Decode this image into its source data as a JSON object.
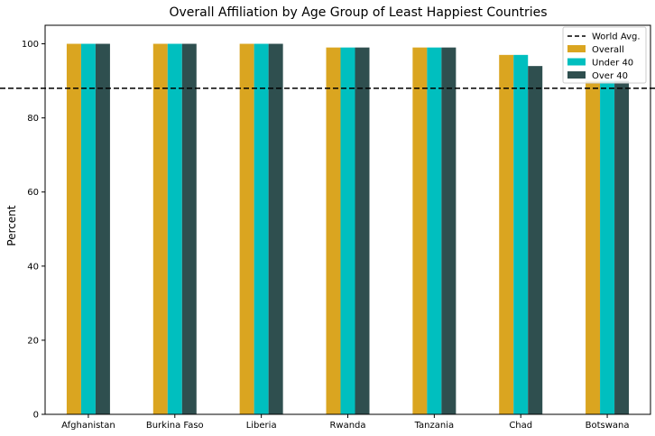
{
  "chart_data": {
    "type": "bar",
    "title": "Overall Affiliation by Age Group of Least Happiest Countries",
    "xlabel": "",
    "ylabel": "Percent",
    "ylim": [
      0,
      105
    ],
    "yticks": [
      0,
      20,
      40,
      60,
      80,
      100
    ],
    "categories": [
      "Afghanistan",
      "Burkina Faso",
      "Liberia",
      "Rwanda",
      "Tanzania",
      "Chad",
      "Botswana"
    ],
    "series": [
      {
        "name": "Overall",
        "color": "#DAA520",
        "values": [
          100,
          100,
          100,
          99,
          99,
          97,
          90
        ]
      },
      {
        "name": "Under 40",
        "color": "#00BFBF",
        "values": [
          100,
          100,
          100,
          99,
          99,
          97,
          90
        ]
      },
      {
        "name": "Over 40",
        "color": "#2F4F4F",
        "values": [
          100,
          100,
          100,
          99,
          99,
          94,
          90
        ]
      }
    ],
    "reference_line": {
      "name": "World Avg.",
      "value": 88,
      "style": "dashed",
      "color": "#000000"
    },
    "legend": {
      "placement": "top-right"
    },
    "grid": false
  }
}
